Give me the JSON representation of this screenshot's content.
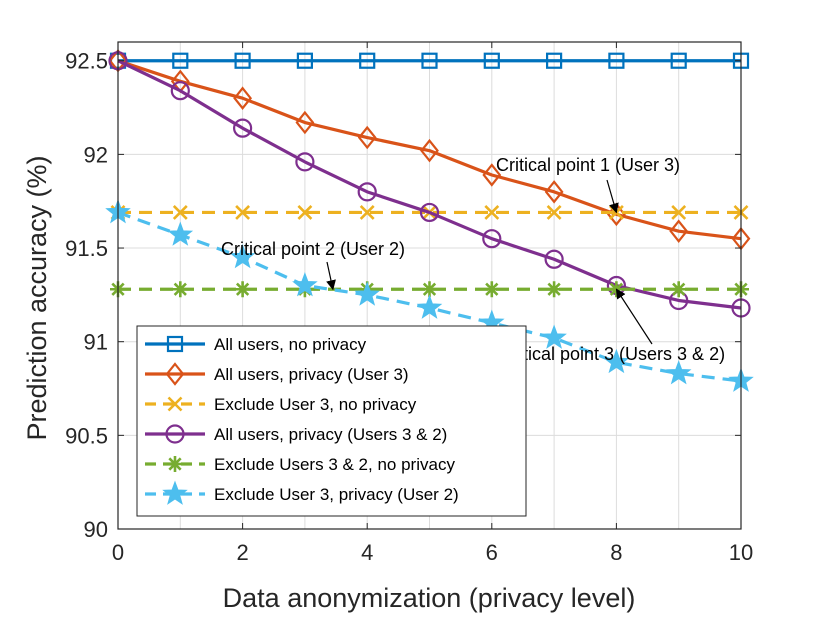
{
  "chart_data": {
    "type": "line",
    "title": "",
    "xlabel": "Data anonymization (privacy level)",
    "ylabel": "Prediction accuracy (%)",
    "xlim": [
      0,
      10
    ],
    "ylim": [
      90,
      92.6
    ],
    "xticks": [
      0,
      2,
      4,
      6,
      8,
      10
    ],
    "xtick_labels": [
      "0",
      "2",
      "4",
      "6",
      "8",
      "10"
    ],
    "yticks": [
      90,
      90.5,
      91,
      91.5,
      92,
      92.5
    ],
    "ytick_labels": [
      "90",
      "90.5",
      "91",
      "91.5",
      "92",
      "92.5"
    ],
    "grid": true,
    "legend_position": "bottom-left",
    "x": [
      0,
      1,
      2,
      3,
      4,
      5,
      6,
      7,
      8,
      9,
      10
    ],
    "series": [
      {
        "name": "All users, no privacy",
        "color": "#0072BD",
        "marker": "square",
        "dash": "solid",
        "values": [
          92.5,
          92.5,
          92.5,
          92.5,
          92.5,
          92.5,
          92.5,
          92.5,
          92.5,
          92.5,
          92.5
        ]
      },
      {
        "name": "All users, privacy (User 3)",
        "color": "#D95319",
        "marker": "diamond",
        "dash": "solid",
        "values": [
          92.5,
          92.39,
          92.3,
          92.17,
          92.09,
          92.02,
          91.89,
          91.8,
          91.68,
          91.59,
          91.55
        ]
      },
      {
        "name": "Exclude User 3, no privacy",
        "color": "#EDB120",
        "marker": "x",
        "dash": "dashed",
        "values": [
          91.69,
          91.69,
          91.69,
          91.69,
          91.69,
          91.69,
          91.69,
          91.69,
          91.69,
          91.69,
          91.69
        ]
      },
      {
        "name": "All users, privacy (Users 3 & 2)",
        "color": "#7E2F8E",
        "marker": "circle",
        "dash": "solid",
        "values": [
          92.5,
          92.34,
          92.14,
          91.96,
          91.8,
          91.69,
          91.55,
          91.44,
          91.3,
          91.22,
          91.18
        ]
      },
      {
        "name": "Exclude Users 3 & 2, no privacy",
        "color": "#77AC30",
        "marker": "asterisk",
        "dash": "dashed",
        "values": [
          91.28,
          91.28,
          91.28,
          91.28,
          91.28,
          91.28,
          91.28,
          91.28,
          91.28,
          91.28,
          91.28
        ]
      },
      {
        "name": "Exclude User 3, privacy (User 2)",
        "color": "#4DBEEE",
        "marker": "star",
        "dash": "dashed",
        "values": [
          91.69,
          91.57,
          91.45,
          91.3,
          91.25,
          91.18,
          91.1,
          91.02,
          90.89,
          90.83,
          90.79
        ]
      }
    ],
    "annotations": [
      {
        "text": "Critical point 1 (User 3)",
        "point": [
          8,
          91.69
        ]
      },
      {
        "text": "Critical point 2 (User 2)",
        "point": [
          3.45,
          91.28
        ]
      },
      {
        "text": "Critical point 3 (Users 3 & 2)",
        "point": [
          8,
          91.28
        ]
      }
    ]
  }
}
